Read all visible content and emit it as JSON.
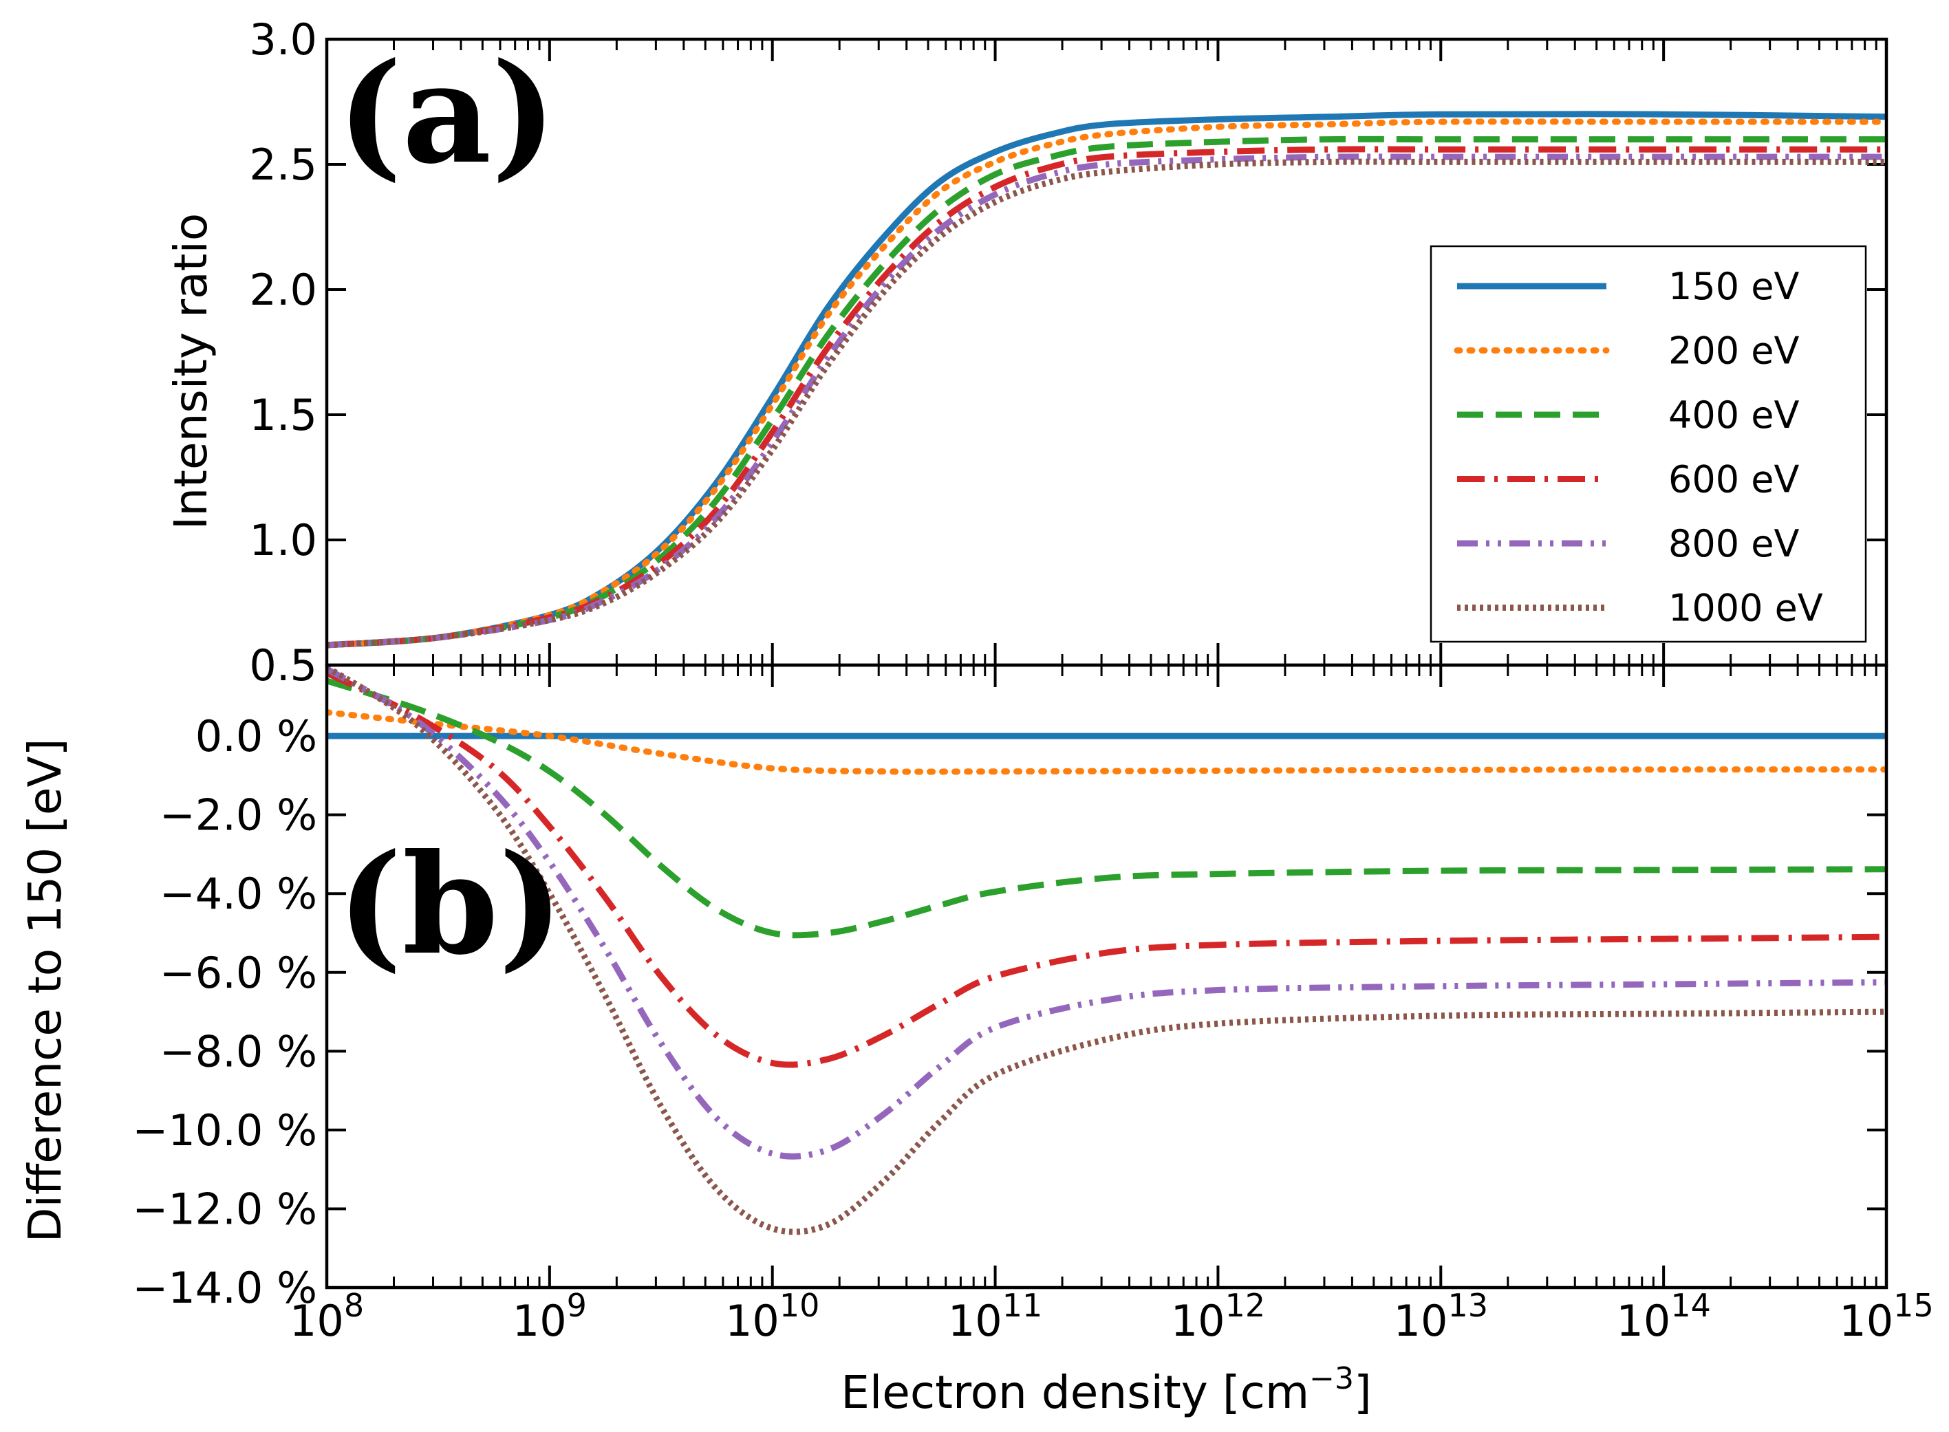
{
  "chart_data": [
    {
      "panel": "(a)",
      "type": "line",
      "ylabel": "Intensity ratio",
      "xscale": "log",
      "xlim_exp": [
        8,
        15
      ],
      "ylim": [
        0.5,
        3.0
      ],
      "ytick_labels": [
        "0.5",
        "1.0",
        "1.5",
        "2.0",
        "2.5",
        "3.0"
      ],
      "ytick_values": [
        0.5,
        1.0,
        1.5,
        2.0,
        2.5,
        3.0
      ],
      "legend_position": "right",
      "series": [
        {
          "name": "150 eV",
          "color": "#1f77b4",
          "style": "solid",
          "x_log10": [
            8,
            8.5,
            9,
            9.25,
            9.5,
            9.75,
            10,
            10.25,
            10.5,
            10.75,
            11,
            11.25,
            11.5,
            12,
            12.5,
            13,
            14,
            15
          ],
          "values": [
            0.58,
            0.61,
            0.7,
            0.8,
            0.97,
            1.23,
            1.57,
            1.93,
            2.21,
            2.43,
            2.55,
            2.62,
            2.66,
            2.68,
            2.69,
            2.7,
            2.7,
            2.69
          ]
        },
        {
          "name": "200 eV",
          "color": "#ff7f0e",
          "style": "dotted",
          "x_log10": [
            8,
            8.5,
            9,
            9.25,
            9.5,
            9.75,
            10,
            10.25,
            10.5,
            10.75,
            11,
            11.25,
            11.5,
            12,
            12.5,
            13,
            14,
            15
          ],
          "values": [
            0.58,
            0.61,
            0.7,
            0.8,
            0.96,
            1.21,
            1.54,
            1.9,
            2.17,
            2.39,
            2.51,
            2.58,
            2.62,
            2.65,
            2.66,
            2.67,
            2.67,
            2.67
          ]
        },
        {
          "name": "400 eV",
          "color": "#2ca02c",
          "style": "dashed",
          "x_log10": [
            8,
            8.5,
            9,
            9.25,
            9.5,
            9.75,
            10,
            10.25,
            10.5,
            10.75,
            11,
            11.25,
            11.5,
            12,
            12.5,
            13,
            14,
            15
          ],
          "values": [
            0.58,
            0.61,
            0.69,
            0.78,
            0.93,
            1.16,
            1.48,
            1.82,
            2.1,
            2.32,
            2.46,
            2.53,
            2.57,
            2.59,
            2.6,
            2.6,
            2.6,
            2.6
          ]
        },
        {
          "name": "600 eV",
          "color": "#d62728",
          "style": "dashdot",
          "x_log10": [
            8,
            8.5,
            9,
            9.25,
            9.5,
            9.75,
            10,
            10.25,
            10.5,
            10.75,
            11,
            11.25,
            11.5,
            12,
            12.5,
            13,
            14,
            15
          ],
          "values": [
            0.58,
            0.61,
            0.69,
            0.77,
            0.91,
            1.12,
            1.43,
            1.77,
            2.05,
            2.27,
            2.41,
            2.49,
            2.53,
            2.55,
            2.56,
            2.56,
            2.56,
            2.56
          ]
        },
        {
          "name": "800 eV",
          "color": "#9467bd",
          "style": "dashdotdot",
          "x_log10": [
            8,
            8.5,
            9,
            9.25,
            9.5,
            9.75,
            10,
            10.25,
            10.5,
            10.75,
            11,
            11.25,
            11.5,
            12,
            12.5,
            13,
            14,
            15
          ],
          "values": [
            0.58,
            0.61,
            0.68,
            0.76,
            0.89,
            1.09,
            1.39,
            1.73,
            2.02,
            2.24,
            2.38,
            2.46,
            2.5,
            2.52,
            2.53,
            2.53,
            2.53,
            2.53
          ]
        },
        {
          "name": "1000 eV",
          "color": "#8c564b",
          "style": "densedot",
          "x_log10": [
            8,
            8.5,
            9,
            9.25,
            9.5,
            9.75,
            10,
            10.25,
            10.5,
            10.75,
            11,
            11.25,
            11.5,
            12,
            12.5,
            13,
            14,
            15
          ],
          "values": [
            0.58,
            0.61,
            0.68,
            0.75,
            0.88,
            1.07,
            1.36,
            1.7,
            1.99,
            2.21,
            2.35,
            2.43,
            2.47,
            2.5,
            2.51,
            2.51,
            2.51,
            2.51
          ]
        }
      ]
    },
    {
      "panel": "(b)",
      "type": "line",
      "ylabel": "Difference to  150  [eV]",
      "xlabel_main": "Electron density [cm",
      "xlabel_sup": "−3",
      "xlabel_end": "]",
      "xscale": "log",
      "xlim_exp": [
        8,
        15
      ],
      "xtick_base": "10",
      "xtick_exponents": [
        "8",
        "9",
        "10",
        "11",
        "12",
        "13",
        "14",
        "15"
      ],
      "ylim": [
        -14.0,
        1.8
      ],
      "ytick_labels": [
        "0.0 %",
        "−2.0 %",
        "−4.0 %",
        "−6.0 %",
        "−8.0 %",
        "−10.0 %",
        "−12.0 %",
        "−14.0 %"
      ],
      "ytick_values": [
        0,
        -2,
        -4,
        -6,
        -8,
        -10,
        -12,
        -14
      ],
      "series": [
        {
          "name": "150 eV",
          "color": "#1f77b4",
          "style": "solid",
          "x_log10": [
            8,
            15
          ],
          "values": [
            0.0,
            0.0
          ]
        },
        {
          "name": "200 eV",
          "color": "#ff7f0e",
          "style": "dotted",
          "x_log10": [
            8,
            8.5,
            9,
            9.5,
            10,
            10.5,
            11,
            12,
            13,
            14,
            15
          ],
          "values": [
            0.6,
            0.3,
            0.0,
            -0.45,
            -0.82,
            -0.9,
            -0.9,
            -0.88,
            -0.86,
            -0.85,
            -0.85
          ]
        },
        {
          "name": "400 eV",
          "color": "#2ca02c",
          "style": "dashed",
          "x_log10": [
            8,
            8.4,
            8.75,
            9,
            9.25,
            9.5,
            9.75,
            10,
            10.25,
            10.5,
            10.75,
            11,
            11.5,
            12,
            13,
            14,
            15
          ],
          "values": [
            1.4,
            0.7,
            -0.1,
            -0.9,
            -2.0,
            -3.3,
            -4.4,
            -5.0,
            -5.0,
            -4.7,
            -4.3,
            -3.95,
            -3.6,
            -3.5,
            -3.42,
            -3.4,
            -3.38
          ]
        },
        {
          "name": "600 eV",
          "color": "#d62728",
          "style": "dashdot",
          "x_log10": [
            8,
            8.4,
            8.75,
            9,
            9.25,
            9.5,
            9.75,
            10,
            10.25,
            10.5,
            10.75,
            11,
            11.5,
            12,
            13,
            14,
            15
          ],
          "values": [
            1.6,
            0.5,
            -0.8,
            -2.3,
            -4.1,
            -6.1,
            -7.6,
            -8.3,
            -8.2,
            -7.6,
            -6.8,
            -6.1,
            -5.5,
            -5.3,
            -5.2,
            -5.15,
            -5.1
          ]
        },
        {
          "name": "800 eV",
          "color": "#9467bd",
          "style": "dashdotdot",
          "x_log10": [
            8,
            8.4,
            8.75,
            9,
            9.25,
            9.5,
            9.75,
            10,
            10.25,
            10.5,
            10.75,
            11,
            11.5,
            12,
            13,
            14,
            15
          ],
          "values": [
            1.7,
            0.4,
            -1.4,
            -3.2,
            -5.4,
            -7.8,
            -9.7,
            -10.6,
            -10.5,
            -9.6,
            -8.4,
            -7.4,
            -6.7,
            -6.45,
            -6.35,
            -6.3,
            -6.25
          ]
        },
        {
          "name": "1000 eV",
          "color": "#8c564b",
          "style": "densedot",
          "x_log10": [
            8,
            8.4,
            8.75,
            9,
            9.25,
            9.5,
            9.75,
            10,
            10.25,
            10.5,
            10.75,
            11,
            11.5,
            12,
            13,
            14,
            15
          ],
          "values": [
            1.75,
            0.3,
            -1.8,
            -4.0,
            -6.6,
            -9.4,
            -11.5,
            -12.5,
            -12.4,
            -11.3,
            -9.8,
            -8.6,
            -7.7,
            -7.3,
            -7.1,
            -7.05,
            -7.0
          ]
        }
      ]
    }
  ]
}
